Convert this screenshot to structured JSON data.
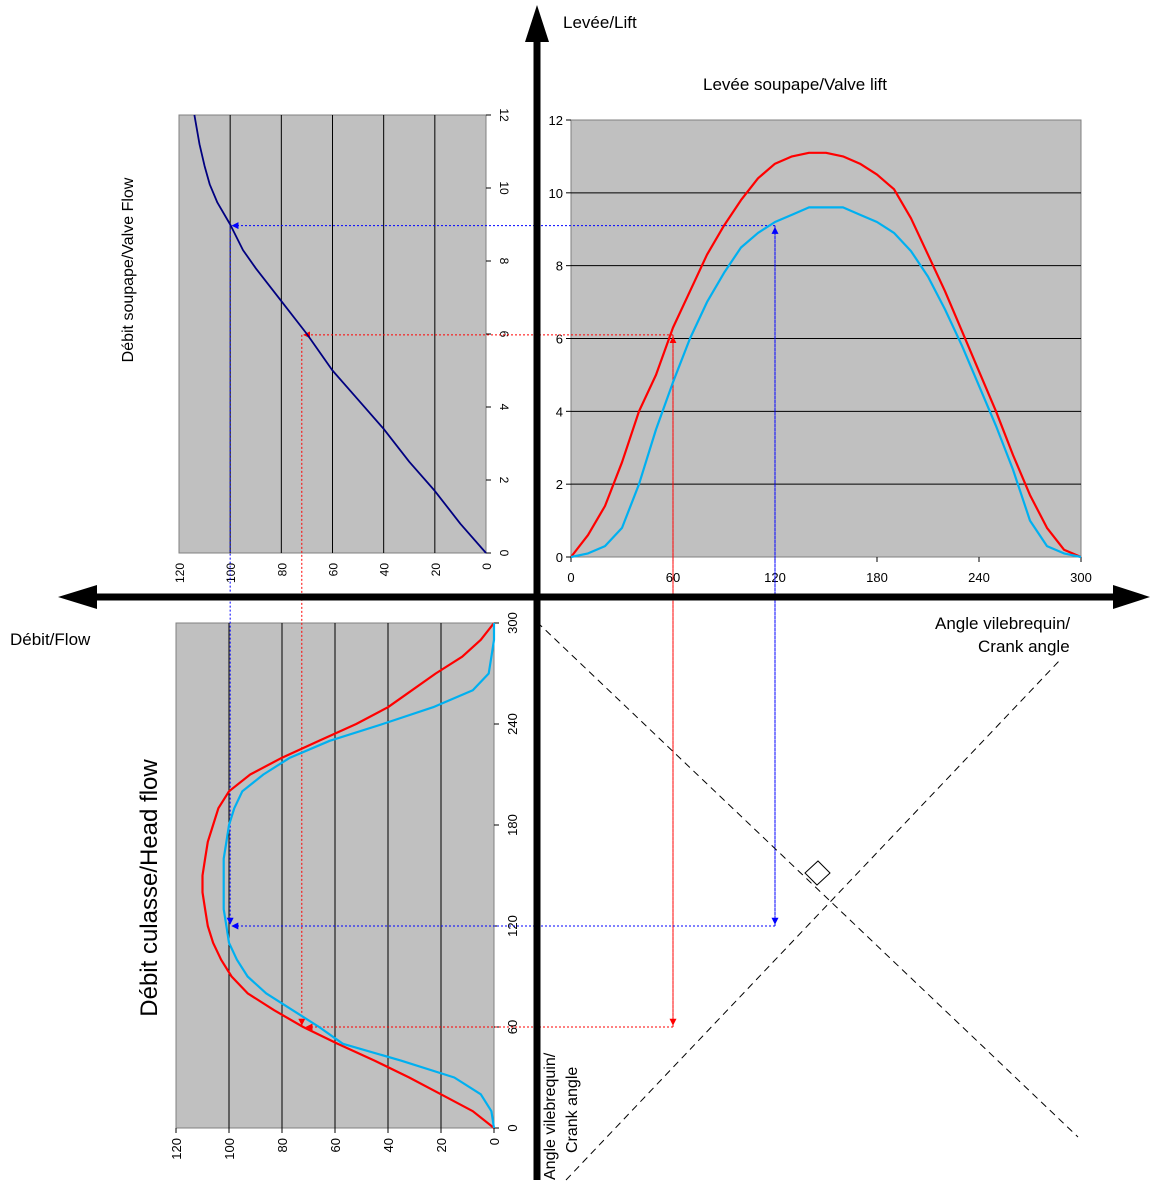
{
  "labels": {
    "lift_axis": "Levée/Lift",
    "valve_lift_title": "Levée soupape/Valve lift",
    "valve_flow_title": "Débit soupape/Valve Flow",
    "flow_axis": "Débit/Flow",
    "crank_angle_right_1": "Angle vilebrequin/",
    "crank_angle_right_2": "Crank angle",
    "head_flow_title": "Débit culasse/Head flow",
    "crank_angle_bottom_1": "Angle vilebrequin/",
    "crank_angle_bottom_2": "Crank angle"
  },
  "colors": {
    "plot_background": "#c0c0c0",
    "series_red": "#ff0000",
    "series_blue": "#00b0f0",
    "valve_flow_curve": "#000080",
    "guide_red": "#ff0000",
    "guide_blue": "#0000ff",
    "axes": "#000000"
  },
  "chart_data": [
    {
      "id": "valve_lift",
      "type": "line",
      "title": "Levée soupape/Valve lift",
      "xlim": [
        0,
        300
      ],
      "ylim": [
        0,
        12
      ],
      "x_ticks": [
        "0",
        "60",
        "120",
        "180",
        "240",
        "300"
      ],
      "y_ticks": [
        "0",
        "2",
        "4",
        "6",
        "8",
        "10",
        "12"
      ],
      "grid": "horizontal",
      "series": [
        {
          "color": "red",
          "x": [
            0,
            10,
            20,
            30,
            40,
            50,
            60,
            70,
            80,
            90,
            100,
            110,
            120,
            130,
            140,
            150,
            160,
            170,
            180,
            190,
            200,
            210,
            220,
            230,
            240,
            250,
            260,
            270,
            280,
            290,
            300
          ],
          "y": [
            0,
            0.6,
            1.4,
            2.6,
            4.0,
            5.0,
            6.3,
            7.3,
            8.3,
            9.1,
            9.8,
            10.4,
            10.8,
            11.0,
            11.1,
            11.1,
            11.0,
            10.8,
            10.5,
            10.1,
            9.3,
            8.3,
            7.3,
            6.2,
            5.1,
            4.0,
            2.8,
            1.7,
            0.8,
            0.2,
            0
          ]
        },
        {
          "color": "blue",
          "x": [
            0,
            10,
            20,
            30,
            40,
            50,
            60,
            70,
            80,
            90,
            100,
            110,
            120,
            130,
            140,
            150,
            160,
            170,
            180,
            190,
            200,
            210,
            220,
            230,
            240,
            250,
            260,
            270,
            280,
            290,
            300
          ],
          "y": [
            0,
            0.1,
            0.3,
            0.8,
            2.0,
            3.5,
            4.8,
            6.0,
            7.0,
            7.8,
            8.5,
            8.9,
            9.2,
            9.4,
            9.6,
            9.6,
            9.6,
            9.4,
            9.2,
            8.9,
            8.4,
            7.7,
            6.8,
            5.8,
            4.7,
            3.6,
            2.4,
            1.0,
            0.3,
            0.1,
            0
          ]
        }
      ]
    },
    {
      "id": "valve_flow",
      "type": "line",
      "title": "Débit soupape/Valve Flow",
      "xlim": [
        120,
        0
      ],
      "ylim": [
        0,
        12
      ],
      "x_ticks": [
        "120",
        "100",
        "80",
        "60",
        "40",
        "20",
        "0"
      ],
      "y_ticks": [
        "0",
        "2",
        "4",
        "6",
        "8",
        "10",
        "12"
      ],
      "grid": "vertical",
      "series": [
        {
          "color": "navy",
          "flow": [
            0,
            10,
            20,
            30,
            40,
            50,
            60,
            70,
            80,
            90,
            95,
            100,
            105,
            108,
            110,
            112,
            114
          ],
          "lift": [
            0,
            0.8,
            1.7,
            2.5,
            3.4,
            4.2,
            5.0,
            6.0,
            6.9,
            7.8,
            8.3,
            9.0,
            9.6,
            10.1,
            10.6,
            11.2,
            12.0
          ]
        }
      ]
    },
    {
      "id": "head_flow",
      "type": "line",
      "title": "Débit culasse/Head flow",
      "xlim": [
        120,
        0
      ],
      "ylim": [
        0,
        300
      ],
      "x_ticks": [
        "120",
        "100",
        "80",
        "60",
        "40",
        "20",
        "0"
      ],
      "y_ticks": [
        "0",
        "60",
        "120",
        "180",
        "240",
        "300"
      ],
      "grid": "vertical",
      "series": [
        {
          "color": "red",
          "angle": [
            0,
            10,
            20,
            30,
            40,
            50,
            60,
            70,
            80,
            90,
            100,
            110,
            120,
            130,
            140,
            150,
            160,
            170,
            180,
            190,
            200,
            210,
            220,
            230,
            240,
            250,
            260,
            270,
            280,
            290,
            300
          ],
          "flow": [
            0,
            8,
            20,
            32,
            45,
            59,
            72,
            83,
            93,
            99,
            103,
            106,
            108,
            109,
            110,
            110,
            109,
            108,
            106,
            104,
            100,
            92,
            80,
            66,
            52,
            40,
            31,
            22,
            12,
            5,
            0
          ]
        },
        {
          "color": "blue",
          "angle": [
            0,
            10,
            20,
            30,
            40,
            50,
            60,
            70,
            80,
            90,
            100,
            110,
            120,
            130,
            140,
            150,
            160,
            170,
            180,
            190,
            200,
            210,
            220,
            230,
            240,
            250,
            260,
            270,
            280,
            290,
            300
          ],
          "flow": [
            0,
            1,
            5,
            15,
            35,
            57,
            66,
            76,
            86,
            93,
            97,
            100,
            101,
            102,
            102,
            102,
            102,
            101,
            100,
            98,
            95,
            87,
            77,
            62,
            42,
            23,
            8,
            2,
            1,
            0,
            0
          ]
        }
      ]
    }
  ],
  "guides": {
    "red": {
      "crank_angle": 60,
      "lift": 6.1,
      "flow": 72
    },
    "blue": {
      "crank_angle": 120,
      "lift": 9.1,
      "flow": 100
    }
  }
}
